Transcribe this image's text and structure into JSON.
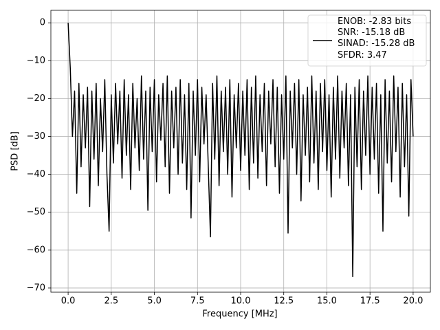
{
  "chart_data": {
    "type": "line",
    "xlabel": "Frequency [MHz]",
    "ylabel": "PSD [dB]",
    "x": [
      0,
      0.125,
      0.25,
      0.375,
      0.5,
      0.625,
      0.75,
      0.875,
      1,
      1.125,
      1.25,
      1.375,
      1.5,
      1.625,
      1.75,
      1.875,
      2,
      2.125,
      2.25,
      2.375,
      2.5,
      2.625,
      2.75,
      2.875,
      3,
      3.125,
      3.25,
      3.375,
      3.5,
      3.625,
      3.75,
      3.875,
      4,
      4.125,
      4.25,
      4.375,
      4.5,
      4.625,
      4.75,
      4.875,
      5,
      5.125,
      5.25,
      5.375,
      5.5,
      5.625,
      5.75,
      5.875,
      6,
      6.125,
      6.25,
      6.375,
      6.5,
      6.625,
      6.75,
      6.875,
      7,
      7.125,
      7.25,
      7.375,
      7.5,
      7.625,
      7.75,
      7.875,
      8,
      8.125,
      8.25,
      8.375,
      8.5,
      8.625,
      8.75,
      8.875,
      9,
      9.125,
      9.25,
      9.375,
      9.5,
      9.625,
      9.75,
      9.875,
      10,
      10.125,
      10.25,
      10.375,
      10.5,
      10.625,
      10.75,
      10.875,
      11,
      11.125,
      11.25,
      11.375,
      11.5,
      11.625,
      11.75,
      11.875,
      12,
      12.125,
      12.25,
      12.375,
      12.5,
      12.625,
      12.75,
      12.875,
      13,
      13.125,
      13.25,
      13.375,
      13.5,
      13.625,
      13.75,
      13.875,
      14,
      14.125,
      14.25,
      14.375,
      14.5,
      14.625,
      14.75,
      14.875,
      15,
      15.125,
      15.25,
      15.375,
      15.5,
      15.625,
      15.75,
      15.875,
      16,
      16.125,
      16.25,
      16.375,
      16.5,
      16.625,
      16.75,
      16.875,
      17,
      17.125,
      17.25,
      17.375,
      17.5,
      17.625,
      17.75,
      17.875,
      18,
      18.125,
      18.25,
      18.375,
      18.5,
      18.625,
      18.75,
      18.875,
      19,
      19.125,
      19.25,
      19.375,
      19.5,
      19.625,
      19.75,
      19.875,
      20
    ],
    "series": [
      {
        "name": "ENOB: -2.83 bits\nSNR: -15.18 dB\nSINAD: -15.28 dB\nSFDR: 3.47",
        "color": "#000000",
        "values": [
          0,
          -12,
          -30,
          -18,
          -45,
          -16,
          -38,
          -19,
          -33,
          -17,
          -48.5,
          -18,
          -36,
          -16,
          -43,
          -20,
          -34,
          -15,
          -40,
          -55,
          -19,
          -37,
          -16,
          -32,
          -18,
          -41,
          -15,
          -35,
          -19,
          -44,
          -16,
          -33,
          -20,
          -39,
          -14,
          -36,
          -18,
          -49.5,
          -17,
          -34,
          -15,
          -42,
          -19,
          -31,
          -16,
          -38,
          -14,
          -45,
          -18,
          -33,
          -17,
          -40,
          -15,
          -37,
          -19,
          -44,
          -16,
          -51.5,
          -18,
          -35,
          -15,
          -42,
          -17,
          -32,
          -19,
          -38,
          -56.5,
          -16,
          -36,
          -14,
          -43,
          -18,
          -34,
          -17,
          -40,
          -15,
          -46,
          -19,
          -33,
          -16,
          -39,
          -18,
          -35,
          -15,
          -44,
          -17,
          -37,
          -14,
          -41,
          -19,
          -34,
          -16,
          -43,
          -18,
          -32,
          -15,
          -38,
          -17,
          -45,
          -19,
          -36,
          -14,
          -55.5,
          -18,
          -33,
          -16,
          -40,
          -15,
          -47,
          -19,
          -35,
          -17,
          -42,
          -14,
          -37,
          -18,
          -44,
          -16,
          -34,
          -15,
          -39,
          -19,
          -46,
          -17,
          -36,
          -14,
          -41,
          -18,
          -33,
          -16,
          -43,
          -19,
          -67,
          -17,
          -38,
          -15,
          -44,
          -18,
          -35,
          -14,
          -40,
          -17,
          -36,
          -16,
          -45,
          -19,
          -55,
          -15,
          -37,
          -18,
          -42,
          -14,
          -34,
          -17,
          -46,
          -16,
          -38,
          -19,
          -51,
          -15,
          -30
        ]
      }
    ],
    "xlim": [
      -1,
      21
    ],
    "ylim": [
      -71.1,
      3.3
    ],
    "xticks": [
      {
        "value": 0,
        "label": "0.0"
      },
      2.5,
      {
        "value": 5,
        "label": "5.0"
      },
      7.5,
      {
        "value": 10,
        "label": "10.0"
      },
      12.5,
      {
        "value": 15,
        "label": "15.0"
      },
      17.5,
      {
        "value": 20,
        "label": "20.0"
      }
    ],
    "yticks": [
      {
        "value": -70,
        "label": "−70"
      },
      {
        "value": -60,
        "label": "−60"
      },
      {
        "value": -50,
        "label": "−50"
      },
      {
        "value": -40,
        "label": "−40"
      },
      {
        "value": -30,
        "label": "−30"
      },
      {
        "value": -20,
        "label": "−20"
      },
      {
        "value": -10,
        "label": "−10"
      },
      0
    ],
    "grid": true,
    "legend": "upper right"
  }
}
